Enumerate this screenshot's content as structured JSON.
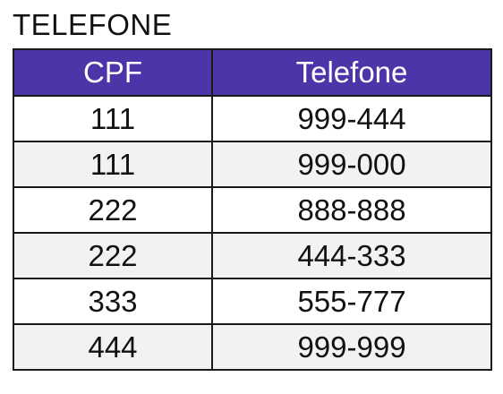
{
  "title": "TELEFONE",
  "table": {
    "headers": [
      "CPF",
      "Telefone"
    ],
    "rows": [
      [
        "111",
        "999-444"
      ],
      [
        "111",
        "999-000"
      ],
      [
        "222",
        "888-888"
      ],
      [
        "222",
        "444-333"
      ],
      [
        "333",
        "555-777"
      ],
      [
        "444",
        "999-999"
      ]
    ]
  },
  "colors": {
    "header_bg": "#4c35a8",
    "header_text": "#ffffff",
    "row_alt_bg": "#f2f2f2",
    "border": "#1a1a1a"
  }
}
